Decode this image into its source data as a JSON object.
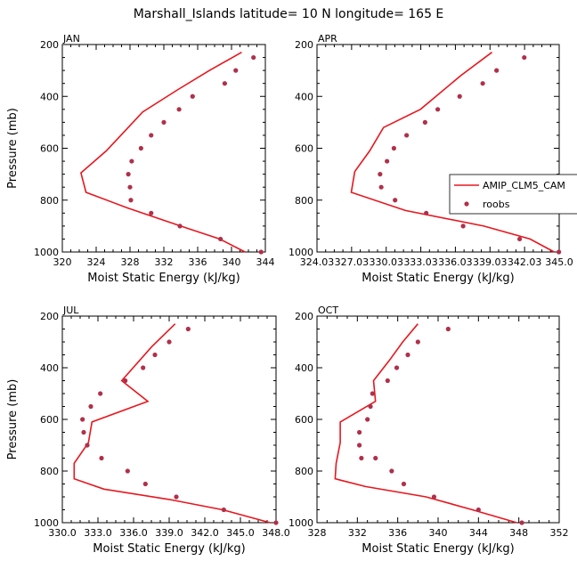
{
  "figure": {
    "title": "Marshall_Islands   latitude= 10 N longitude= 165 E"
  },
  "colors": {
    "model_line": "#e8161e",
    "obs_marker": "#b0304a",
    "axis": "#000000"
  },
  "legend": {
    "placement": "inside-right of APR panel",
    "entries": [
      "AMIP_CLM5_CAM",
      "roobs"
    ]
  },
  "chart_data": [
    {
      "type": "line",
      "panel": "JAN",
      "xlabel": "Moist Static Energy (kJ/kg)",
      "ylabel": "Pressure (mb)",
      "xlim": [
        320,
        344
      ],
      "ylim": [
        1000,
        200
      ],
      "y_inverted": true,
      "xticks": [
        320,
        324,
        328,
        332,
        336,
        340,
        344
      ],
      "xtick_labels": [
        "320",
        "324",
        "328",
        "332",
        "336",
        "340",
        "344"
      ],
      "yticks": [
        200,
        400,
        600,
        800,
        1000
      ],
      "ytick_labels": [
        "200",
        "400",
        "600",
        "800",
        "1000"
      ],
      "series": [
        {
          "name": "AMIP_CLM5_CAM",
          "kind": "line",
          "x": [
            341.2,
            337.4,
            333.6,
            329.5,
            325.2,
            322.2,
            322.8,
            327.7,
            334.0,
            338.6,
            341.6
          ],
          "y": [
            230,
            300,
            375,
            460,
            610,
            695,
            770,
            830,
            900,
            950,
            1000
          ]
        },
        {
          "name": "roobs",
          "kind": "scatter",
          "x": [
            342.6,
            340.5,
            339.2,
            335.4,
            333.8,
            332.0,
            330.5,
            329.3,
            328.2,
            327.8,
            328.0,
            328.1,
            330.5,
            333.9,
            338.7,
            343.5
          ],
          "y": [
            250,
            300,
            350,
            400,
            450,
            500,
            550,
            600,
            650,
            700,
            750,
            800,
            850,
            900,
            950,
            1000
          ]
        }
      ]
    },
    {
      "type": "line",
      "panel": "APR",
      "xlabel": "Moist Static Energy (kJ/kg)",
      "ylabel": "",
      "xlim": [
        324.03,
        345.03
      ],
      "ylim": [
        1000,
        200
      ],
      "y_inverted": true,
      "xticks": [
        324.03,
        327.03,
        330.03,
        333.03,
        336.03,
        339.03,
        342.03,
        345.03
      ],
      "xtick_labels": [
        "324.03",
        "327.03",
        "330.03",
        "333.03",
        "336.03",
        "339.03",
        "342.03",
        "345.0"
      ],
      "yticks": [
        200,
        400,
        600,
        800,
        1000
      ],
      "ytick_labels": [
        "200",
        "400",
        "600",
        "800",
        "1000"
      ],
      "series": [
        {
          "name": "AMIP_CLM5_CAM",
          "kind": "line",
          "x": [
            339.2,
            336.5,
            333.0,
            329.8,
            328.6,
            327.3,
            327.0,
            331.7,
            338.5,
            342.5,
            344.6
          ],
          "y": [
            230,
            320,
            450,
            520,
            610,
            690,
            770,
            840,
            900,
            950,
            1000
          ]
        },
        {
          "name": "roobs",
          "kind": "scatter",
          "x": [
            342.0,
            339.6,
            338.4,
            336.4,
            334.5,
            333.4,
            331.8,
            330.7,
            330.1,
            329.5,
            329.6,
            330.8,
            333.5,
            336.7,
            341.6,
            345.0
          ],
          "y": [
            250,
            300,
            350,
            400,
            450,
            500,
            550,
            600,
            650,
            700,
            750,
            800,
            850,
            900,
            950,
            1000
          ]
        }
      ]
    },
    {
      "type": "line",
      "panel": "JUL",
      "xlabel": "Moist Static Energy (kJ/kg)",
      "ylabel": "Pressure (mb)",
      "xlim": [
        330.0,
        348.0
      ],
      "ylim": [
        1000,
        200
      ],
      "y_inverted": true,
      "xticks": [
        330,
        333,
        336,
        339,
        342,
        345,
        348
      ],
      "xtick_labels": [
        "330.0",
        "333.0",
        "336.0",
        "339.0",
        "342.0",
        "345.0",
        "348.0"
      ],
      "yticks": [
        200,
        400,
        600,
        800,
        1000
      ],
      "ytick_labels": [
        "200",
        "400",
        "600",
        "800",
        "1000"
      ],
      "series": [
        {
          "name": "AMIP_CLM5_CAM",
          "kind": "line",
          "x": [
            339.5,
            337.5,
            335.0,
            337.2,
            332.5,
            332.2,
            331.0,
            331.0,
            333.5,
            339.0,
            343.5,
            347.5
          ],
          "y": [
            230,
            320,
            450,
            530,
            610,
            690,
            770,
            830,
            870,
            910,
            950,
            1000
          ]
        },
        {
          "name": "roobs",
          "kind": "scatter",
          "x": [
            340.6,
            339.0,
            337.8,
            336.8,
            335.3,
            333.2,
            332.4,
            331.7,
            331.8,
            332.1,
            333.3,
            335.5,
            337.0,
            339.6,
            343.6,
            348.0
          ],
          "y": [
            250,
            300,
            350,
            400,
            450,
            500,
            550,
            600,
            650,
            700,
            750,
            800,
            850,
            900,
            950,
            1000
          ]
        }
      ]
    },
    {
      "type": "line",
      "panel": "OCT",
      "xlabel": "Moist Static Energy (kJ/kg)",
      "ylabel": "",
      "xlim": [
        328,
        352
      ],
      "ylim": [
        1000,
        200
      ],
      "y_inverted": true,
      "xticks": [
        328,
        332,
        336,
        340,
        344,
        348,
        352
      ],
      "xtick_labels": [
        "328",
        "332",
        "336",
        "340",
        "344",
        "348",
        "352"
      ],
      "yticks": [
        200,
        400,
        600,
        800,
        1000
      ],
      "ytick_labels": [
        "200",
        "400",
        "600",
        "800",
        "1000"
      ],
      "series": [
        {
          "name": "AMIP_CLM5_CAM",
          "kind": "line",
          "x": [
            338.0,
            336.5,
            335.2,
            333.6,
            333.8,
            330.3,
            330.3,
            329.9,
            329.8,
            332.8,
            338.8,
            343.4,
            347.8
          ],
          "y": [
            230,
            300,
            370,
            450,
            530,
            610,
            690,
            770,
            830,
            860,
            900,
            950,
            1000
          ]
        },
        {
          "name": "roobs",
          "kind": "scatter",
          "x": [
            341.0,
            338.0,
            337.0,
            335.9,
            335.0,
            333.5,
            333.3,
            333.0,
            332.2,
            332.2,
            332.4,
            333.8,
            335.4,
            336.6,
            339.6,
            344.0,
            348.3
          ],
          "y": [
            250,
            300,
            350,
            400,
            450,
            500,
            550,
            600,
            650,
            700,
            750,
            750,
            800,
            850,
            900,
            950,
            1000
          ]
        }
      ]
    }
  ]
}
